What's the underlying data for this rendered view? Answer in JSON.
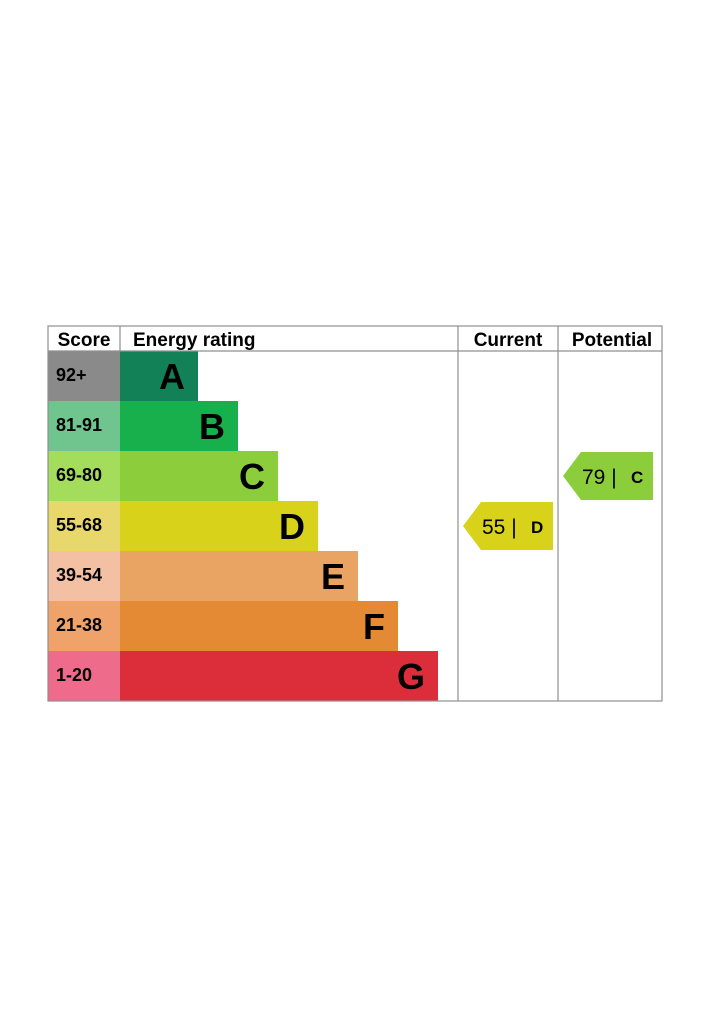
{
  "chart_data": {
    "type": "table",
    "headers": {
      "score": "Score",
      "rating": "Energy rating",
      "current": "Current",
      "potential": "Potential"
    },
    "bands": [
      {
        "letter": "A",
        "range": "92+",
        "score_color": "#8a8a8a",
        "bar_color": "#138158"
      },
      {
        "letter": "B",
        "range": "81-91",
        "score_color": "#6fc58d",
        "bar_color": "#18b04c"
      },
      {
        "letter": "C",
        "range": "69-80",
        "score_color": "#a4dd5c",
        "bar_color": "#8ccd3b"
      },
      {
        "letter": "D",
        "range": "55-68",
        "score_color": "#e8d86b",
        "bar_color": "#d8d31a"
      },
      {
        "letter": "E",
        "range": "39-54",
        "score_color": "#f3c0a4",
        "bar_color": "#e9a464"
      },
      {
        "letter": "F",
        "range": "21-38",
        "score_color": "#efa36b",
        "bar_color": "#e48a35"
      },
      {
        "letter": "G",
        "range": "1-20",
        "score_color": "#ee6b8b",
        "bar_color": "#dc2d3b"
      }
    ],
    "current": {
      "value": 55,
      "band": "D",
      "text": "55 |",
      "color": "#d8d31a"
    },
    "potential": {
      "value": 79,
      "band": "C",
      "text": "79 |",
      "color": "#8ccd3b"
    }
  }
}
